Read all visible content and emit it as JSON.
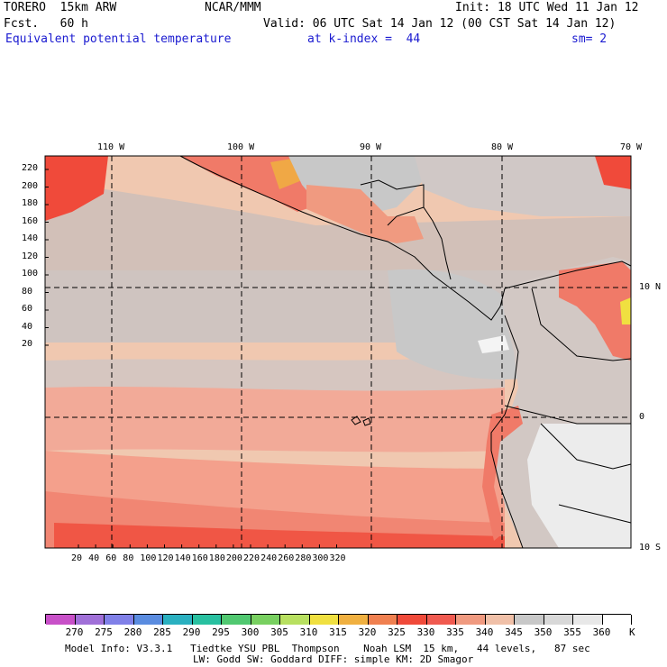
{
  "header": {
    "model": "TORERO  15km ARW",
    "org": "NCAR/MMM",
    "init": "Init: 18 UTC Wed 11 Jan 12",
    "fcst": "Fcst.   60 h",
    "valid": "Valid: 06 UTC Sat 14 Jan 12 (00 CST Sat 14 Jan 12)",
    "field": "Equivalent potential temperature",
    "level": "at k-index =  44",
    "smooth": "sm= 2"
  },
  "map": {
    "lon_labels": [
      "110 W",
      "100 W",
      "90 W",
      "80 W",
      "70 W"
    ],
    "lat_labels": [
      "10 N",
      "0",
      "10 S"
    ],
    "y_ticks": [
      "220",
      "200",
      "180",
      "160",
      "140",
      "120",
      "100",
      "80",
      "60",
      "40",
      "20"
    ],
    "x_ticks": [
      "20",
      "40",
      "60",
      "80",
      "100",
      "120",
      "140",
      "160",
      "180",
      "200",
      "220",
      "240",
      "260",
      "280",
      "300",
      "320"
    ]
  },
  "colorbar": {
    "labels": [
      "270",
      "275",
      "280",
      "285",
      "290",
      "295",
      "300",
      "305",
      "310",
      "315",
      "320",
      "325",
      "330",
      "335",
      "340",
      "345",
      "350",
      "355",
      "360"
    ],
    "unit": "K",
    "colors": [
      "#c850c8",
      "#a070d8",
      "#8080e8",
      "#5a8ce0",
      "#2ab0c0",
      "#28c0a0",
      "#50c870",
      "#78d060",
      "#b8e060",
      "#f0e040",
      "#f0b040",
      "#f08050",
      "#f04a3a",
      "#f05a50",
      "#f09a80",
      "#f0c0a8",
      "#c8c8c8",
      "#d8d8d8",
      "#e8e8e8",
      "#ffffff"
    ]
  },
  "footer": {
    "line1": "Model Info: V3.3.1   Tiedtke YSU PBL  Thompson    Noah LSM  15 km,   44 levels,   87 sec",
    "line2": "LW: Godd SW: Goddard DIFF: simple KM: 2D Smagor"
  }
}
